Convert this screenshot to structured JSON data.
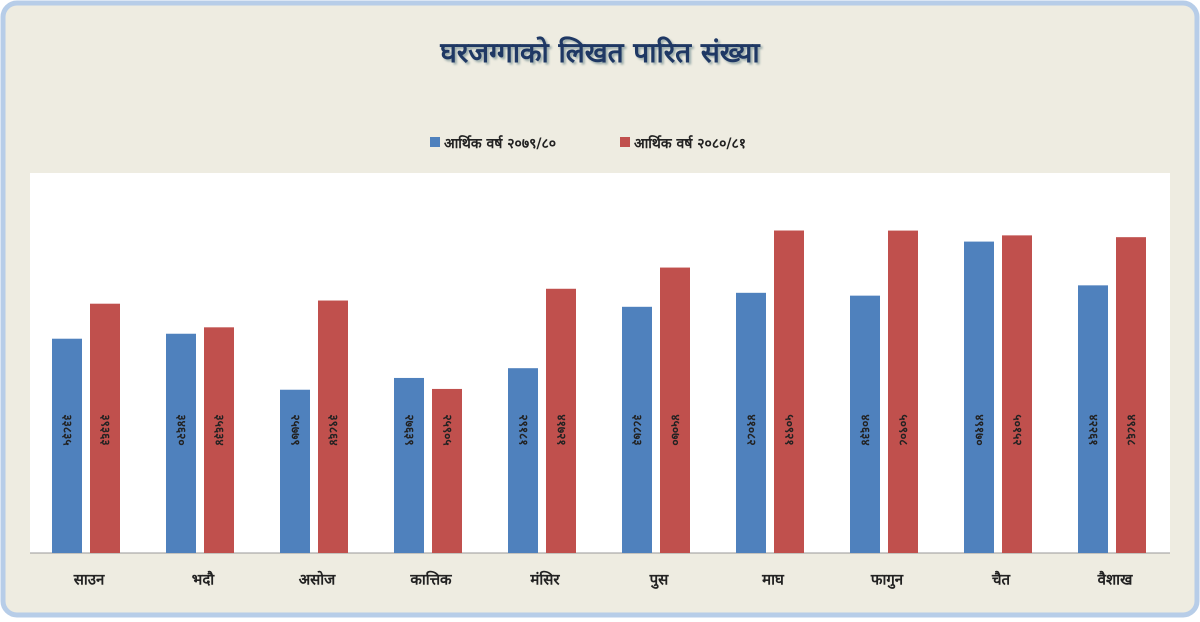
{
  "chart_data": {
    "type": "bar",
    "title": "घरजग्गाको लिखत पारित संख्या",
    "categories": [
      "साउन",
      "भदौ",
      "असोज",
      "कात्तिक",
      "मंसिर",
      "पुस",
      "माघ",
      "फागुन",
      "चैत",
      "वैशाख"
    ],
    "series": [
      {
        "name": "आर्थिक वर्ष २०७९/८०",
        "color": "#4f81bd",
        "values": [
          33835,
          34620,
          25779,
          27639,
          29181,
          38873,
          41082,
          40634,
          49170,
          42261
        ],
        "value_labels": [
          "३३८३५",
          "३४६२०",
          "२५७७९",
          "२७६३९",
          "२९१८१",
          "३८८७३",
          "४१०८२",
          "४०६३४",
          "४९१७०",
          "४२२६१"
        ]
      },
      {
        "name": "आर्थिक वर्ष २०८०/८१",
        "color": "#c0504d",
        "values": [
          39363,
          35634,
          39864,
          25905,
          41721,
          45070,
          50921,
          50908,
          50152,
          49868
        ],
        "value_labels": [
          "३९३६३",
          "३५६३४",
          "३९८६४",
          "२५९०५",
          "४१७२१",
          "४५०७०",
          "५०९२१",
          "५०९०८",
          "५०१५२",
          "४९८६८"
        ]
      }
    ],
    "ylim": [
      0,
      60000
    ],
    "legend": "top"
  }
}
